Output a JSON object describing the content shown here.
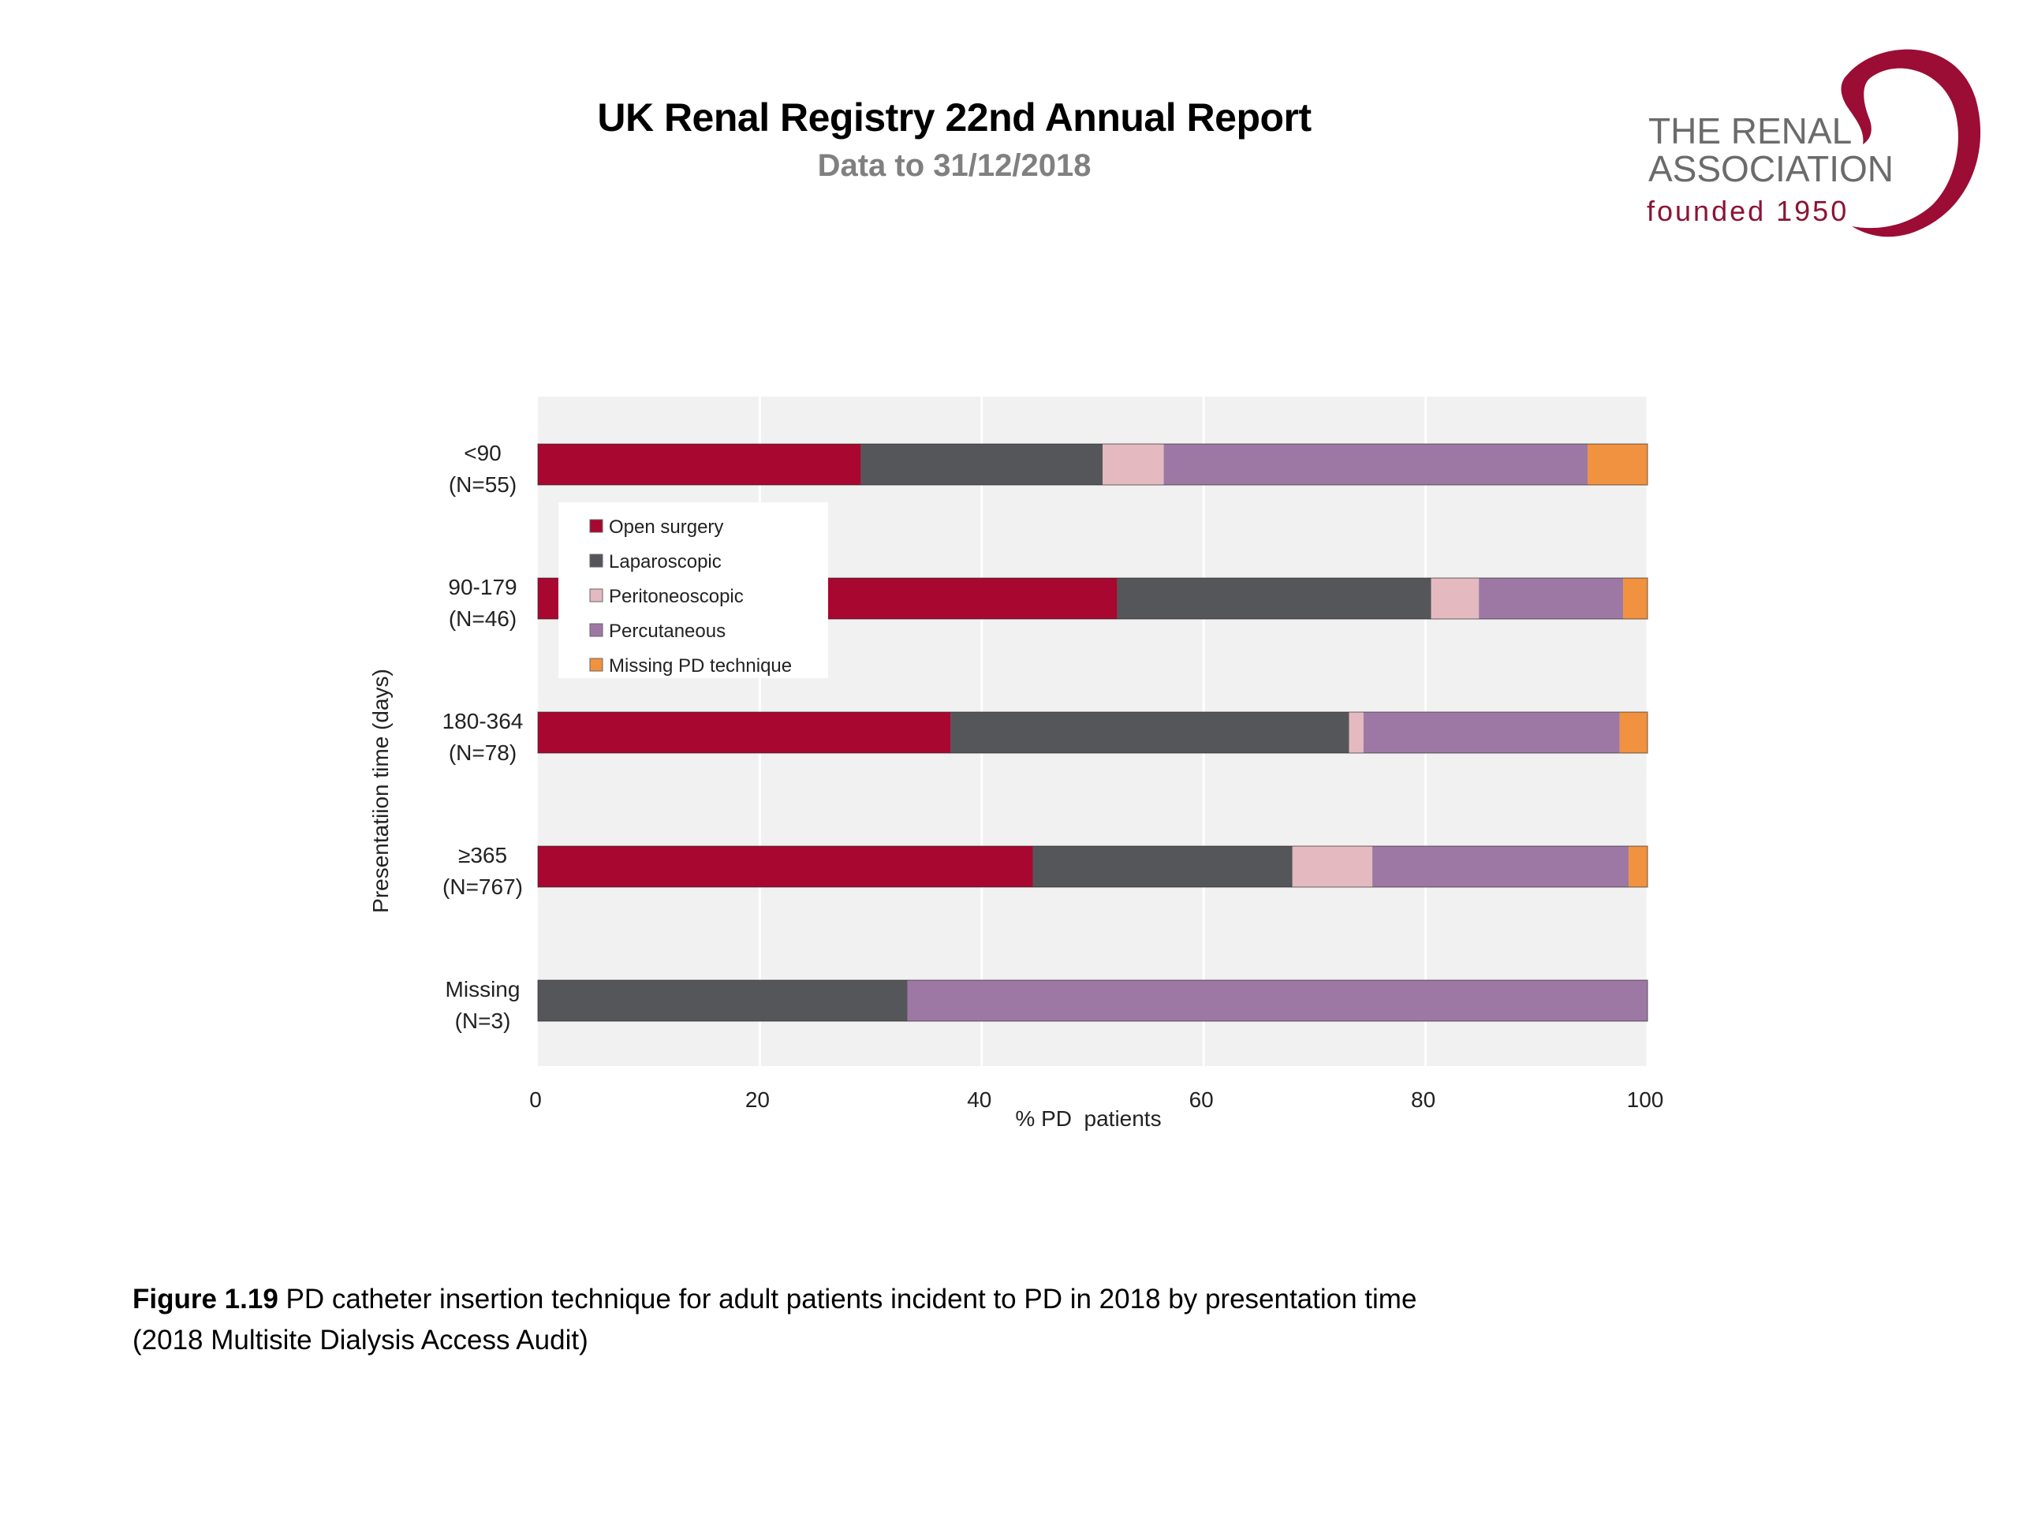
{
  "header": {
    "title": "UK Renal Registry 22nd Annual Report",
    "subtitle": "Data to 31/12/2018"
  },
  "logo": {
    "line1": "THE RENAL",
    "line2": "ASSOCIATION",
    "line3": "founded 1950",
    "icon": "kidney-swoosh-icon",
    "color": "#8B1434"
  },
  "caption": {
    "label": "Figure 1.19",
    "text": " PD catheter insertion technique for adult patients incident to PD in 2018 by presentation time",
    "line2": "(2018 Multisite Dialysis Access Audit)"
  },
  "chart_data": {
    "type": "bar",
    "orientation": "horizontal",
    "stacked": true,
    "title": "",
    "xlabel": "% PD  patients",
    "ylabel": "Presentatiion time (days)",
    "xlim": [
      0,
      100
    ],
    "xticks": [
      "0",
      "20",
      "40",
      "60",
      "80",
      "100"
    ],
    "grid": "vertical",
    "legend_position": "upper-left inside plot",
    "categories": [
      {
        "label": "<90",
        "n": "(N=55)"
      },
      {
        "label": "90-179",
        "n": "(N=46)"
      },
      {
        "label": "180-364",
        "n": "(N=78)"
      },
      {
        "label": "≥365",
        "n": "(N=767)"
      },
      {
        "label": "Missing",
        "n": "(N=3)"
      }
    ],
    "series": [
      {
        "name": "Open surgery",
        "color": "#A8072F",
        "values": [
          29.1,
          52.2,
          37.2,
          44.6,
          0
        ]
      },
      {
        "name": "Laparoscopic",
        "color": "#55565A",
        "values": [
          21.8,
          28.3,
          35.9,
          23.4,
          33.3
        ]
      },
      {
        "name": "Peritoneoscopic",
        "color": "#E4BAC0",
        "values": [
          5.5,
          4.3,
          1.3,
          7.2,
          0
        ]
      },
      {
        "name": "Percutaneous",
        "color": "#9E78A5",
        "values": [
          38.2,
          13.0,
          23.1,
          23.1,
          66.7
        ]
      },
      {
        "name": "Missing PD technique",
        "color": "#F0923F",
        "values": [
          5.5,
          2.2,
          2.6,
          1.7,
          0
        ]
      }
    ]
  }
}
